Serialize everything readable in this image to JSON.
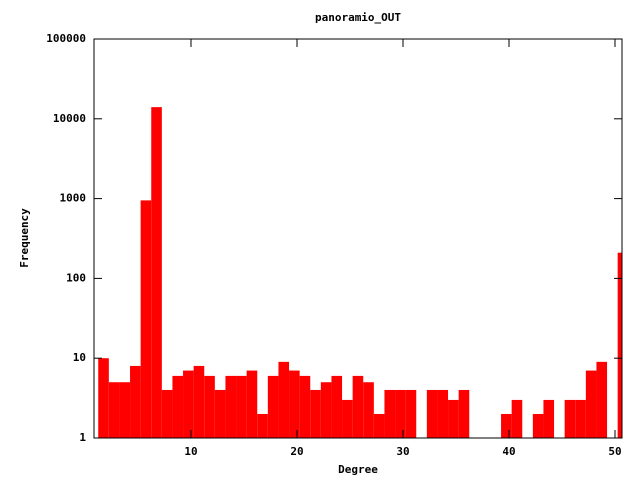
{
  "chart_data": {
    "type": "histogram",
    "title": "panoramio_OUT",
    "x_label": "Degree",
    "y_label": "Frequency",
    "bins": [
      1.25,
      2.25,
      3.25,
      4.25,
      5.25,
      6.25,
      7.25,
      8.25,
      9.25,
      10.25,
      11.25,
      12.25,
      13.25,
      14.25,
      15.25,
      16.25,
      17.25,
      18.25,
      19.25,
      20.25,
      21.25,
      22.25,
      23.25,
      24.25,
      25.25,
      26.25,
      27.25,
      28.25,
      29.25,
      30.25,
      31.25,
      32.25,
      33.25,
      34.25,
      35.25,
      36.25,
      37.25,
      38.25,
      39.25,
      40.25,
      41.25,
      42.25,
      43.25,
      44.25,
      45.25,
      46.25,
      47.25,
      48.25,
      49.25,
      50.25,
      51.25
    ],
    "values": [
      10,
      5,
      5,
      8,
      950,
      14000,
      4,
      6,
      7,
      8,
      6,
      4,
      6,
      6,
      7,
      2,
      6,
      9,
      7,
      6,
      4,
      5,
      6,
      3,
      6,
      5,
      2,
      4,
      4,
      4,
      0,
      4,
      4,
      3,
      4,
      0,
      0,
      0,
      2,
      3,
      0,
      2,
      3,
      0,
      3,
      3,
      7,
      9,
      0,
      210
    ],
    "color": "#ff0000",
    "y_log_scale": true,
    "xlim": [
      0.85,
      50.66
    ],
    "ylim": [
      1,
      100000
    ],
    "xticks": [
      10,
      20,
      30,
      40,
      50
    ],
    "yticks": [
      1,
      10,
      100,
      1000,
      10000,
      100000
    ]
  }
}
